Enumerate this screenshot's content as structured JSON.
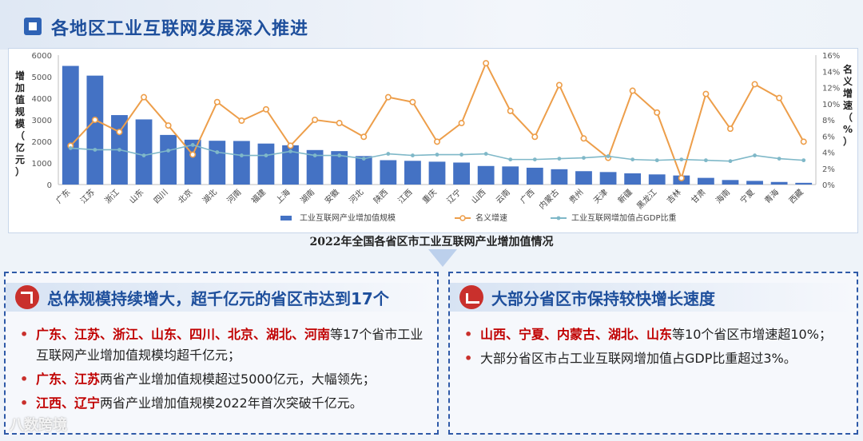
{
  "header": {
    "title": "各地区工业互联网发展深入推进"
  },
  "chart_data": {
    "type": "bar",
    "categories": [
      "广东",
      "江苏",
      "浙江",
      "山东",
      "四川",
      "北京",
      "湖北",
      "河南",
      "福建",
      "上海",
      "湖南",
      "安徽",
      "河北",
      "陕西",
      "江西",
      "重庆",
      "辽宁",
      "山西",
      "云南",
      "广西",
      "内蒙古",
      "贵州",
      "天津",
      "新疆",
      "黑龙江",
      "吉林",
      "甘肃",
      "海南",
      "宁夏",
      "青海",
      "西藏"
    ],
    "series": [
      {
        "name": "工业互联网产业增加值规模",
        "type": "bar",
        "axis": "left",
        "color": "#4472c4",
        "values": [
          5500,
          5050,
          3220,
          3020,
          2300,
          2080,
          2030,
          2020,
          1900,
          1820,
          1600,
          1550,
          1320,
          1130,
          1100,
          1060,
          1020,
          860,
          840,
          780,
          710,
          620,
          580,
          520,
          470,
          420,
          310,
          210,
          170,
          120,
          80
        ]
      },
      {
        "name": "名义增速",
        "type": "line",
        "axis": "right",
        "color": "#ed9e4a",
        "values": [
          4.8,
          8.0,
          6.5,
          10.8,
          7.3,
          3.7,
          10.2,
          7.9,
          9.3,
          4.8,
          8.0,
          7.6,
          5.9,
          10.8,
          10.2,
          5.3,
          7.6,
          15.0,
          9.1,
          5.9,
          12.3,
          5.7,
          3.3,
          11.6,
          8.9,
          0.8,
          11.2,
          6.9,
          12.4,
          10.7,
          5.3
        ]
      },
      {
        "name": "工业互联网增加值占GDP比重",
        "type": "line",
        "axis": "right",
        "color": "#7fb8c8",
        "values": [
          4.5,
          4.3,
          4.3,
          3.6,
          4.2,
          4.9,
          4.0,
          3.6,
          3.6,
          4.1,
          3.6,
          3.6,
          3.2,
          3.8,
          3.6,
          3.7,
          3.7,
          3.8,
          3.1,
          3.1,
          3.2,
          3.3,
          3.5,
          3.1,
          3.0,
          3.1,
          3.0,
          2.9,
          3.6,
          3.2,
          3.0
        ]
      }
    ],
    "ylabel": "增加值规模（亿元）",
    "ylabel_right": "名义增速（%）",
    "yticks": [
      "6000",
      "5000",
      "4000",
      "3000",
      "2000",
      "1000",
      "0"
    ],
    "yticks_right": [
      "16%",
      "14%",
      "12%",
      "10%",
      "8%",
      "6%",
      "4%",
      "2%",
      "0%"
    ],
    "ylim": [
      0,
      6000
    ],
    "ylim_right": [
      0,
      16
    ],
    "legend_position": "bottom"
  },
  "caption": "2022年全国各省区市工业互联网产业增加值情况",
  "left_panel": {
    "heading": "总体规模持续增大，超千亿元的省区市达到17个",
    "items": [
      {
        "bullet": "•",
        "highlight": "广东、江苏、浙江、山东、四川、北京、湖北、河南",
        "text": "等17个省市工业互联网产业增加值规模均超千亿元；"
      },
      {
        "bullet": "•",
        "highlight": "广东、江苏",
        "text": "两省产业增加值规模超过5000亿元，大幅领先；"
      },
      {
        "bullet": "•",
        "highlight": "江西、辽宁",
        "text": "两省产业增加值规模2022年首次突破千亿元。"
      }
    ]
  },
  "right_panel": {
    "heading": "大部分省区市保持较快增长速度",
    "items": [
      {
        "bullet": "•",
        "highlight": "山西、宁夏、内蒙古、湖北、山东",
        "text": "等10个省区市增速超10%；"
      },
      {
        "bullet": "•",
        "highlight": "",
        "text": "大部分省区市占工业互联网增加值占GDP比重超过3%。"
      }
    ]
  },
  "watermark": "八数跨境"
}
